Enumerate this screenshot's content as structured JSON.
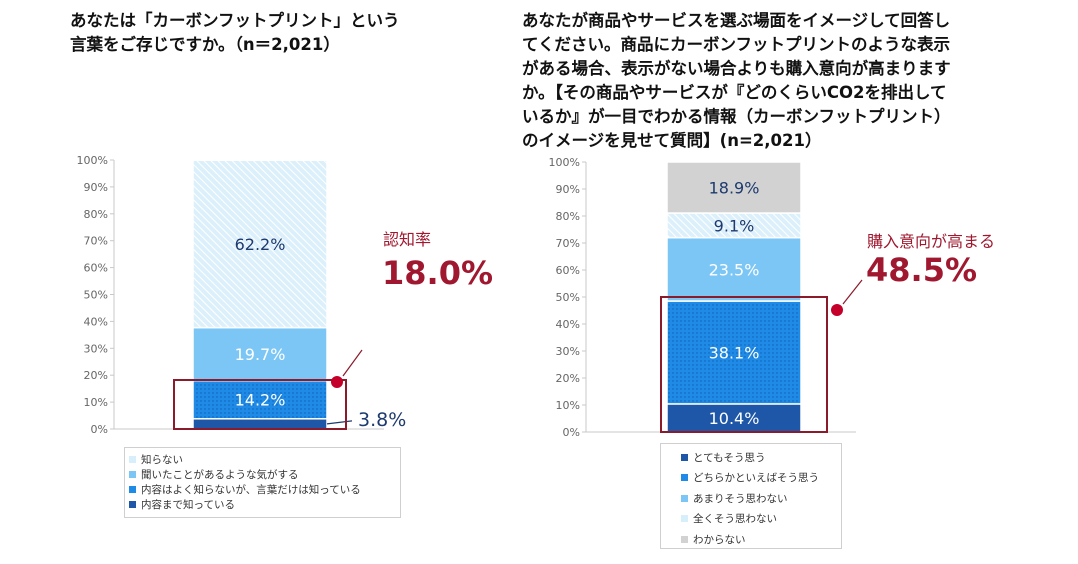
{
  "left_title_lines": [
    "あなたは「カーボンフットプリント」という",
    "言葉をご存じですか。（n＝2,021）"
  ],
  "right_title_lines": [
    "あなたが商品やサービスを選ぶ場面をイメージして回答し",
    "てください。商品にカーボンフットプリントのような表示",
    "がある場合、表示がない場合よりも購入意向が高まります",
    "か。【その商品やサービスが『どのくらいCO2を排出して",
    "いるか』が一目でわかる情報（カーボンフットプリント）",
    "のイメージを見せて質問】(n=2,021）"
  ],
  "chart_data": [
    {
      "type": "bar",
      "stacked": true,
      "ylim": [
        0,
        100
      ],
      "yticks": [
        "0%",
        "10%",
        "20%",
        "30%",
        "40%",
        "50%",
        "60%",
        "70%",
        "80%",
        "90%",
        "100%"
      ],
      "series": [
        {
          "name": "内容まで知っている",
          "value": 3.8,
          "label": "3.8%",
          "color": "#1f57a8"
        },
        {
          "name": "内容はよく知らないが、言葉だけは知っている",
          "value": 14.2,
          "label": "14.2%",
          "color": "#1f8be6"
        },
        {
          "name": "聞いたことがあるような気がする",
          "value": 19.7,
          "label": "19.7%",
          "color": "#7cc6f5"
        },
        {
          "name": "知らない",
          "value": 62.2,
          "label": "62.2%",
          "color": "#d7eefb"
        }
      ],
      "legend_order": [
        "知らない",
        "聞いたことがあるような気がする",
        "内容はよく知らないが、言葉だけは知っている",
        "内容まで知っている"
      ],
      "annotation": {
        "label": "認知率",
        "value": "18.0%"
      }
    },
    {
      "type": "bar",
      "stacked": true,
      "ylim": [
        0,
        100
      ],
      "yticks": [
        "0%",
        "10%",
        "20%",
        "30%",
        "40%",
        "50%",
        "60%",
        "70%",
        "80%",
        "90%",
        "100%"
      ],
      "series": [
        {
          "name": "とてもそう思う",
          "value": 10.4,
          "label": "10.4%",
          "color": "#1f57a8"
        },
        {
          "name": "どちらかといえばそう思う",
          "value": 38.1,
          "label": "38.1%",
          "color": "#1f8be6"
        },
        {
          "name": "あまりそう思わない",
          "value": 23.5,
          "label": "23.5%",
          "color": "#7cc6f5"
        },
        {
          "name": "全くそう思わない",
          "value": 9.1,
          "label": "9.1%",
          "color": "#d7eefb"
        },
        {
          "name": "わからない",
          "value": 18.9,
          "label": "18.9%",
          "color": "#d2d2d2"
        }
      ],
      "legend_order": [
        "とてもそう思う",
        "どちらかといえばそう思う",
        "あまりそう思わない",
        "全くそう思わない",
        "わからない"
      ],
      "annotation": {
        "label": "購入意向が高まる",
        "value": "48.5%"
      }
    }
  ],
  "colors": {
    "accent": "#a0182f",
    "value_text": "#1e3a6e",
    "outline": "#8b1a2b"
  }
}
